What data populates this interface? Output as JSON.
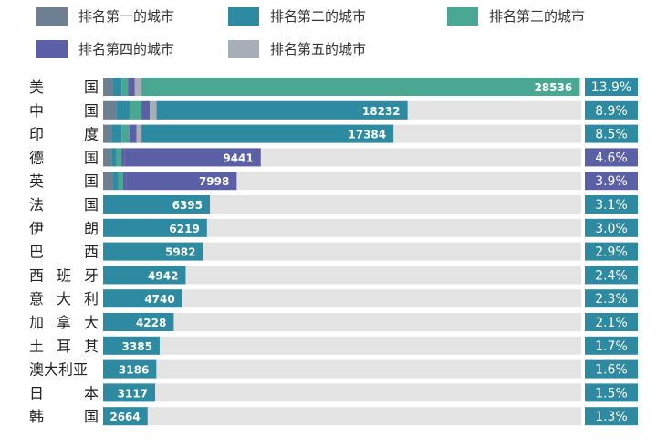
{
  "chart_data": {
    "type": "bar",
    "orientation": "horizontal",
    "stacked": true,
    "legend": [
      {
        "key": "rank1",
        "label": "排名第一的城市",
        "color": "#6f7f92"
      },
      {
        "key": "rank2",
        "label": "排名第二的城市",
        "color": "#2e8aa0"
      },
      {
        "key": "rank3",
        "label": "排名第三的城市",
        "color": "#4aa892"
      },
      {
        "key": "rank4",
        "label": "排名第四的城市",
        "color": "#5a5fa6"
      },
      {
        "key": "rank5",
        "label": "排名第五的城市",
        "color": "#a7aeb7"
      }
    ],
    "legend_position": "top",
    "xlim": [
      0,
      30000
    ],
    "categories": [
      {
        "label": [
          "美",
          "国"
        ],
        "total": 28536,
        "total_label": "28536",
        "pct": "13.9%",
        "segments": [
          600,
          500,
          400,
          400,
          400,
          26236
        ],
        "last_color": "rank3"
      },
      {
        "label": [
          "中",
          "国"
        ],
        "total": 18232,
        "total_label": "18232",
        "pct": "8.9%",
        "segments": [
          800,
          800,
          700,
          500,
          400,
          15032
        ],
        "last_color": "rank2"
      },
      {
        "label": [
          "印",
          "度"
        ],
        "total": 17384,
        "total_label": "17384",
        "pct": "8.5%",
        "segments": [
          500,
          600,
          500,
          400,
          300,
          15084
        ],
        "last_color": "rank2"
      },
      {
        "label": [
          "德",
          "国"
        ],
        "total": 9441,
        "total_label": "9441",
        "pct": "4.6%",
        "segments": [
          500,
          300,
          300,
          200,
          8141
        ],
        "last_color": "rank4"
      },
      {
        "label": [
          "英",
          "国"
        ],
        "total": 7998,
        "total_label": "7998",
        "pct": "3.9%",
        "segments": [
          600,
          300,
          300,
          200,
          6598
        ],
        "last_color": "rank4"
      },
      {
        "label": [
          "法",
          "国"
        ],
        "total": 6395,
        "total_label": "6395",
        "pct": "3.1%",
        "segments": [
          6395
        ],
        "last_color": "rank2"
      },
      {
        "label": [
          "伊",
          "朗"
        ],
        "total": 6219,
        "total_label": "6219",
        "pct": "3.0%",
        "segments": [
          6219
        ],
        "last_color": "rank2"
      },
      {
        "label": [
          "巴",
          "西"
        ],
        "total": 5982,
        "total_label": "5982",
        "pct": "2.9%",
        "segments": [
          5982
        ],
        "last_color": "rank2"
      },
      {
        "label": [
          "西",
          "班",
          "牙"
        ],
        "total": 4942,
        "total_label": "4942",
        "pct": "2.4%",
        "segments": [
          4942
        ],
        "last_color": "rank2"
      },
      {
        "label": [
          "意",
          "大",
          "利"
        ],
        "total": 4740,
        "total_label": "4740",
        "pct": "2.3%",
        "segments": [
          4740
        ],
        "last_color": "rank2"
      },
      {
        "label": [
          "加",
          "拿",
          "大"
        ],
        "total": 4228,
        "total_label": "4228",
        "pct": "2.1%",
        "segments": [
          4228
        ],
        "last_color": "rank2"
      },
      {
        "label": [
          "土",
          "耳",
          "其"
        ],
        "total": 3385,
        "total_label": "3385",
        "pct": "1.7%",
        "segments": [
          3385
        ],
        "last_color": "rank2"
      },
      {
        "label": [
          "澳大利亚"
        ],
        "total": 3186,
        "total_label": "3186",
        "pct": "1.6%",
        "segments": [
          3186
        ],
        "last_color": "rank2"
      },
      {
        "label": [
          "日",
          "本"
        ],
        "total": 3117,
        "total_label": "3117",
        "pct": "1.5%",
        "segments": [
          3117
        ],
        "last_color": "rank2"
      },
      {
        "label": [
          "韩",
          "国"
        ],
        "total": 2664,
        "total_label": "2664",
        "pct": "1.3%",
        "segments": [
          2664
        ],
        "last_color": "rank2"
      }
    ],
    "colors": {
      "track": "#e4e4e4",
      "pct_box": "#2e8aa0",
      "pct_box_highlight": "#5a5fa6"
    }
  }
}
